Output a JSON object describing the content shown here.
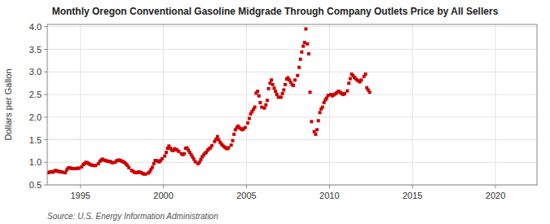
{
  "chart_data": {
    "type": "scatter",
    "title": "Monthly Oregon Conventional Gasoline Midgrade Through Company Outlets Price by All Sellers",
    "y_label": "Dollars per Gallon",
    "source": "Source: U.S. Energy Information Administration",
    "color": "#cc0000",
    "marker": "square",
    "grid": true,
    "xlim": [
      1993.0,
      2022.5
    ],
    "ylim": [
      0.5,
      4.05
    ],
    "xticks": [
      1995,
      2000,
      2005,
      2010,
      2015,
      2020
    ],
    "yticks": [
      0.5,
      {
        "value": 1.0,
        "label": "1.0"
      },
      1.5,
      {
        "value": 2.0,
        "label": "2.0"
      },
      2.5,
      {
        "value": 3.0,
        "label": "3.0"
      },
      3.5,
      {
        "value": 4.0,
        "label": "4.0"
      }
    ],
    "x": [
      1993.08,
      1993.17,
      1993.25,
      1993.33,
      1993.42,
      1993.5,
      1993.58,
      1993.67,
      1993.75,
      1993.83,
      1993.92,
      1994.08,
      1994.17,
      1994.25,
      1994.33,
      1994.42,
      1994.5,
      1994.58,
      1994.67,
      1994.75,
      1994.83,
      1994.92,
      1995.08,
      1995.17,
      1995.25,
      1995.33,
      1995.42,
      1995.5,
      1995.58,
      1995.67,
      1995.75,
      1995.83,
      1995.92,
      1996.08,
      1996.17,
      1996.25,
      1996.33,
      1996.42,
      1996.5,
      1996.58,
      1996.67,
      1996.75,
      1996.83,
      1996.92,
      1997.08,
      1997.17,
      1997.25,
      1997.33,
      1997.42,
      1997.5,
      1997.58,
      1997.67,
      1997.75,
      1997.83,
      1997.92,
      1998.08,
      1998.17,
      1998.25,
      1998.33,
      1998.42,
      1998.5,
      1998.58,
      1998.67,
      1998.75,
      1998.83,
      1998.92,
      1999.08,
      1999.17,
      1999.25,
      1999.33,
      1999.42,
      1999.5,
      1999.58,
      1999.67,
      1999.75,
      1999.83,
      1999.92,
      2000.08,
      2000.17,
      2000.25,
      2000.33,
      2000.42,
      2000.5,
      2000.58,
      2000.67,
      2000.75,
      2000.83,
      2000.92,
      2001.08,
      2001.17,
      2001.25,
      2001.33,
      2001.42,
      2001.5,
      2001.58,
      2001.67,
      2001.75,
      2001.83,
      2001.92,
      2002.08,
      2002.17,
      2002.25,
      2002.33,
      2002.42,
      2002.5,
      2002.58,
      2002.67,
      2002.75,
      2002.83,
      2002.92,
      2003.08,
      2003.17,
      2003.25,
      2003.33,
      2003.42,
      2003.5,
      2003.58,
      2003.67,
      2003.75,
      2003.83,
      2003.92,
      2004.08,
      2004.17,
      2004.25,
      2004.33,
      2004.42,
      2004.5,
      2004.58,
      2004.67,
      2004.75,
      2004.83,
      2004.92,
      2005.08,
      2005.17,
      2005.25,
      2005.33,
      2005.42,
      2005.5,
      2005.58,
      2005.67,
      2005.75,
      2005.83,
      2005.92,
      2006.08,
      2006.17,
      2006.25,
      2006.33,
      2006.42,
      2006.5,
      2006.58,
      2006.67,
      2006.75,
      2006.83,
      2006.92,
      2007.08,
      2007.17,
      2007.25,
      2007.33,
      2007.42,
      2007.5,
      2007.58,
      2007.67,
      2007.75,
      2007.83,
      2007.92,
      2008.08,
      2008.17,
      2008.25,
      2008.33,
      2008.42,
      2008.5,
      2008.58,
      2008.67,
      2008.75,
      2008.83,
      2008.92,
      2009.08,
      2009.17,
      2009.25,
      2009.33,
      2009.42,
      2009.5,
      2009.58,
      2009.67,
      2009.75,
      2009.83,
      2009.92,
      2010.08,
      2010.17,
      2010.25,
      2010.33,
      2010.42,
      2010.5,
      2010.58,
      2010.67,
      2010.75,
      2010.83,
      2010.92,
      2011.08,
      2011.17,
      2011.25,
      2011.33,
      2011.42,
      2011.5,
      2011.58,
      2011.67,
      2011.75,
      2011.83,
      2011.92,
      2012.08,
      2012.17,
      2012.25,
      2012.33,
      2012.42
    ],
    "values": [
      0.77,
      0.79,
      0.79,
      0.78,
      0.8,
      0.82,
      0.81,
      0.8,
      0.79,
      0.79,
      0.78,
      0.77,
      0.83,
      0.87,
      0.88,
      0.87,
      0.86,
      0.86,
      0.86,
      0.86,
      0.87,
      0.87,
      0.9,
      0.95,
      0.97,
      1.0,
      0.99,
      0.97,
      0.95,
      0.94,
      0.93,
      0.93,
      0.93,
      0.97,
      1.02,
      1.05,
      1.07,
      1.05,
      1.04,
      1.03,
      1.02,
      1.02,
      1.01,
      0.99,
      1.0,
      1.03,
      1.04,
      1.05,
      1.04,
      1.02,
      1.01,
      0.99,
      0.96,
      0.93,
      0.88,
      0.82,
      0.8,
      0.78,
      0.77,
      0.77,
      0.79,
      0.78,
      0.77,
      0.75,
      0.74,
      0.74,
      0.76,
      0.79,
      0.84,
      0.89,
      0.97,
      1.04,
      1.04,
      1.02,
      1.01,
      1.04,
      1.08,
      1.14,
      1.22,
      1.31,
      1.36,
      1.31,
      1.27,
      1.26,
      1.3,
      1.28,
      1.27,
      1.24,
      1.19,
      1.17,
      1.19,
      1.31,
      1.32,
      1.27,
      1.22,
      1.17,
      1.12,
      1.07,
      1.01,
      0.97,
      1.0,
      1.06,
      1.12,
      1.16,
      1.2,
      1.22,
      1.27,
      1.3,
      1.32,
      1.37,
      1.46,
      1.51,
      1.57,
      1.5,
      1.44,
      1.4,
      1.37,
      1.34,
      1.32,
      1.3,
      1.32,
      1.38,
      1.48,
      1.62,
      1.72,
      1.77,
      1.8,
      1.76,
      1.74,
      1.72,
      1.74,
      1.77,
      1.87,
      1.97,
      2.07,
      2.12,
      2.17,
      2.22,
      2.53,
      2.57,
      2.47,
      2.32,
      2.22,
      2.2,
      2.27,
      2.37,
      2.63,
      2.75,
      2.82,
      2.72,
      2.64,
      2.57,
      2.5,
      2.44,
      2.44,
      2.52,
      2.6,
      2.72,
      2.84,
      2.87,
      2.82,
      2.77,
      2.72,
      2.7,
      2.82,
      2.92,
      3.1,
      3.28,
      3.44,
      3.57,
      3.65,
      3.95,
      3.62,
      3.4,
      2.55,
      1.9,
      1.68,
      1.62,
      1.72,
      1.92,
      2.1,
      2.18,
      2.22,
      2.32,
      2.38,
      2.42,
      2.48,
      2.5,
      2.47,
      2.49,
      2.51,
      2.53,
      2.56,
      2.57,
      2.54,
      2.52,
      2.5,
      2.52,
      2.58,
      2.75,
      2.85,
      2.95,
      2.92,
      2.88,
      2.85,
      2.82,
      2.8,
      2.78,
      2.82,
      2.9,
      2.95,
      2.65,
      2.6,
      2.55
    ]
  }
}
